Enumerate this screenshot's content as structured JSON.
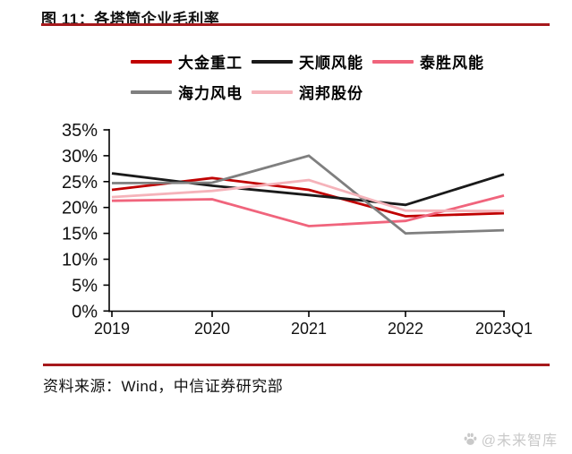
{
  "header": {
    "title": "图 11：各塔筒企业毛利率",
    "accent_color": "#a6191c"
  },
  "chart_data": {
    "type": "line",
    "title": "各塔筒企业毛利率",
    "xlabel": "",
    "ylabel": "",
    "categories": [
      "2019",
      "2020",
      "2021",
      "2022",
      "2023Q1"
    ],
    "series": [
      {
        "name": "大金重工",
        "color": "#c00000",
        "values": [
          23.4,
          25.7,
          23.4,
          18.3,
          18.9
        ]
      },
      {
        "name": "天顺风能",
        "color": "#1a1a1a",
        "values": [
          26.6,
          24.2,
          22.4,
          20.5,
          26.4
        ]
      },
      {
        "name": "泰胜风能",
        "color": "#f0647c",
        "values": [
          21.3,
          21.6,
          16.4,
          17.4,
          22.3
        ]
      },
      {
        "name": "海力风电",
        "color": "#7f7f7f",
        "values": [
          24.7,
          24.8,
          30.0,
          15.0,
          15.6
        ]
      },
      {
        "name": "润邦股份",
        "color": "#f5b3ba",
        "values": [
          22.0,
          23.2,
          25.3,
          19.4,
          19.3
        ]
      }
    ],
    "ylim": [
      0,
      35
    ],
    "ytick_step": 5,
    "ytick_labels": [
      "0%",
      "5%",
      "10%",
      "15%",
      "20%",
      "25%",
      "30%",
      "35%"
    ],
    "grid": false,
    "legend_position": "top",
    "legend_rows": [
      3,
      2
    ]
  },
  "footer": {
    "source_label": "资料来源：Wind，中信证券研究部"
  },
  "watermark": {
    "icon": "paw-icon",
    "text": "@未来智库"
  }
}
